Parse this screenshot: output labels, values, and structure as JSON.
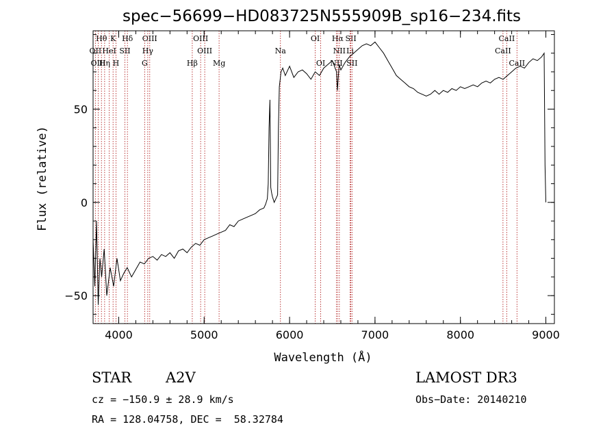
{
  "chart_data": {
    "type": "line",
    "title": "spec−56699−HD083725N555909B_sp16−234.fits",
    "xlabel": "Wavelength (Å)",
    "ylabel": "Flux (relative)",
    "xlim": [
      3700,
      9100
    ],
    "ylim": [
      -65,
      92
    ],
    "x_ticks": [
      4000,
      5000,
      6000,
      7000,
      8000,
      9000
    ],
    "y_ticks": [
      -50,
      0,
      50
    ],
    "series": [
      {
        "x": [
          3700,
          3720,
          3740,
          3760,
          3780,
          3800,
          3830,
          3860,
          3900,
          3940,
          3980,
          4020,
          4060,
          4100,
          4150,
          4200,
          4250,
          4300,
          4350,
          4400,
          4450,
          4500,
          4550,
          4600,
          4650,
          4700,
          4750,
          4800,
          4850,
          4900,
          4950,
          5000,
          5050,
          5100,
          5150,
          5200,
          5250,
          5300,
          5350,
          5400,
          5450,
          5500,
          5550,
          5600,
          5650,
          5700,
          5720,
          5740,
          5750,
          5760,
          5770,
          5780,
          5790,
          5800,
          5820,
          5840,
          5860,
          5870,
          5880,
          5900,
          5920,
          5950,
          6000,
          6050,
          6100,
          6150,
          6200,
          6250,
          6300,
          6350,
          6400,
          6450,
          6500,
          6550,
          6560,
          6580,
          6600,
          6650,
          6700,
          6750,
          6800,
          6850,
          6900,
          6950,
          7000,
          7050,
          7100,
          7150,
          7200,
          7250,
          7300,
          7350,
          7400,
          7450,
          7500,
          7550,
          7600,
          7650,
          7700,
          7750,
          7800,
          7850,
          7900,
          7950,
          8000,
          8050,
          8100,
          8150,
          8200,
          8250,
          8300,
          8350,
          8400,
          8450,
          8500,
          8550,
          8600,
          8650,
          8700,
          8750,
          8800,
          8850,
          8900,
          8950,
          8980,
          8990,
          9000
        ],
        "y": [
          -20,
          -45,
          -10,
          -55,
          -30,
          -40,
          -25,
          -50,
          -35,
          -45,
          -30,
          -42,
          -38,
          -35,
          -40,
          -36,
          -32,
          -33,
          -30,
          -29,
          -31,
          -28,
          -29,
          -27,
          -30,
          -26,
          -25,
          -27,
          -24,
          -22,
          -23,
          -20,
          -19,
          -18,
          -17,
          -16,
          -15,
          -12,
          -13,
          -10,
          -9,
          -8,
          -7,
          -6,
          -4,
          -3,
          -1,
          2,
          10,
          40,
          55,
          8,
          5,
          3,
          0,
          2,
          4,
          40,
          62,
          70,
          72,
          68,
          73,
          67,
          70,
          71,
          69,
          66,
          70,
          68,
          72,
          74,
          76,
          70,
          60,
          74,
          71,
          75,
          78,
          80,
          82,
          84,
          85,
          84,
          86,
          83,
          80,
          76,
          72,
          68,
          66,
          64,
          62,
          61,
          59,
          58,
          57,
          58,
          60,
          58,
          60,
          59,
          61,
          60,
          62,
          61,
          62,
          63,
          62,
          64,
          65,
          64,
          66,
          67,
          66,
          68,
          70,
          72,
          73,
          72,
          75,
          77,
          76,
          78,
          80,
          20,
          0
        ]
      }
    ],
    "lines": [
      {
        "label": "Hθ",
        "wl": 3798,
        "row": 0
      },
      {
        "label": "K",
        "wl": 3934,
        "row": 0
      },
      {
        "label": "Hδ",
        "wl": 4102,
        "row": 0
      },
      {
        "label": "OIII",
        "wl": 4363,
        "row": 0
      },
      {
        "label": "OIII",
        "wl": 4959,
        "row": 0
      },
      {
        "label": "OI",
        "wl": 6300,
        "row": 0
      },
      {
        "label": "Hα",
        "wl": 6563,
        "row": 0
      },
      {
        "label": "SII",
        "wl": 6717,
        "row": 0
      },
      {
        "label": "CaII",
        "wl": 8542,
        "row": 0
      },
      {
        "label": "OII",
        "wl": 3727,
        "row": 1
      },
      {
        "label": "HeI",
        "wl": 3889,
        "row": 1
      },
      {
        "label": "SII",
        "wl": 4072,
        "row": 1
      },
      {
        "label": "Hγ",
        "wl": 4340,
        "row": 1
      },
      {
        "label": "OIII",
        "wl": 5007,
        "row": 1
      },
      {
        "label": "Na",
        "wl": 5893,
        "row": 1
      },
      {
        "label": "NII",
        "wl": 6583,
        "row": 1
      },
      {
        "label": "Li",
        "wl": 6708,
        "row": 1
      },
      {
        "label": "CaII",
        "wl": 8498,
        "row": 1
      },
      {
        "label": "OIII",
        "wl": 3760,
        "row": 2
      },
      {
        "label": "Hη",
        "wl": 3835,
        "row": 2
      },
      {
        "label": "H",
        "wl": 3968,
        "row": 2
      },
      {
        "label": "G",
        "wl": 4304,
        "row": 2
      },
      {
        "label": "Hβ",
        "wl": 4861,
        "row": 2
      },
      {
        "label": "Mg",
        "wl": 5175,
        "row": 2
      },
      {
        "label": "OI",
        "wl": 6364,
        "row": 2
      },
      {
        "label": "NII",
        "wl": 6548,
        "row": 2
      },
      {
        "label": "SII",
        "wl": 6731,
        "row": 2
      },
      {
        "label": "CaII",
        "wl": 8662,
        "row": 2
      }
    ]
  },
  "info": {
    "class": "STAR",
    "subclass": "A2V",
    "survey": "LAMOST DR3",
    "cz": "cz = −150.9 ± 28.9 km/s",
    "obs_date": "Obs−Date: 20140210",
    "radec": "RA = 128.04758, DEC =  58.32784"
  }
}
